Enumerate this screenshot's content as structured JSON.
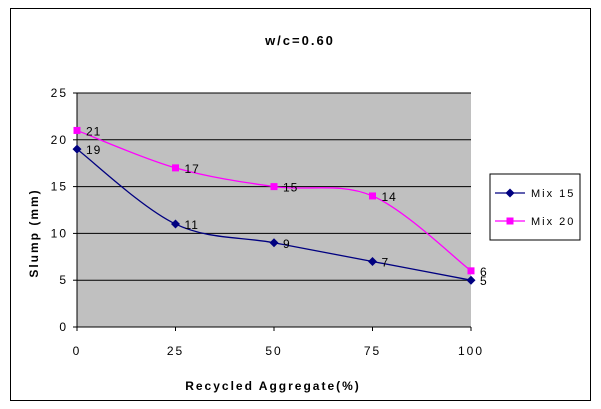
{
  "chart_data": {
    "type": "line",
    "title": "w/c=0.60",
    "xlabel": "Recycled Aggregate(%)",
    "ylabel": "Slump (mm)",
    "x": [
      0,
      25,
      50,
      75,
      100
    ],
    "xticks": [
      "0",
      "25",
      "50",
      "75",
      "100"
    ],
    "yticks": [
      "0",
      "5",
      "10",
      "15",
      "20",
      "25"
    ],
    "xlim": [
      0,
      100
    ],
    "ylim": [
      0,
      25
    ],
    "grid": "horizontal",
    "plot_background": "#c0c0c0",
    "legend_position": "right",
    "series": [
      {
        "name": "Mix 15",
        "values": [
          19,
          11,
          9,
          7,
          5
        ],
        "labels": [
          "19",
          "11",
          "9",
          "7",
          "5"
        ],
        "color": "#000080",
        "marker": "diamond"
      },
      {
        "name": "Mix 20",
        "values": [
          21,
          17,
          15,
          14,
          6
        ],
        "labels": [
          "21",
          "17",
          "15",
          "14",
          "6"
        ],
        "color": "#ff00ff",
        "marker": "square"
      }
    ]
  }
}
